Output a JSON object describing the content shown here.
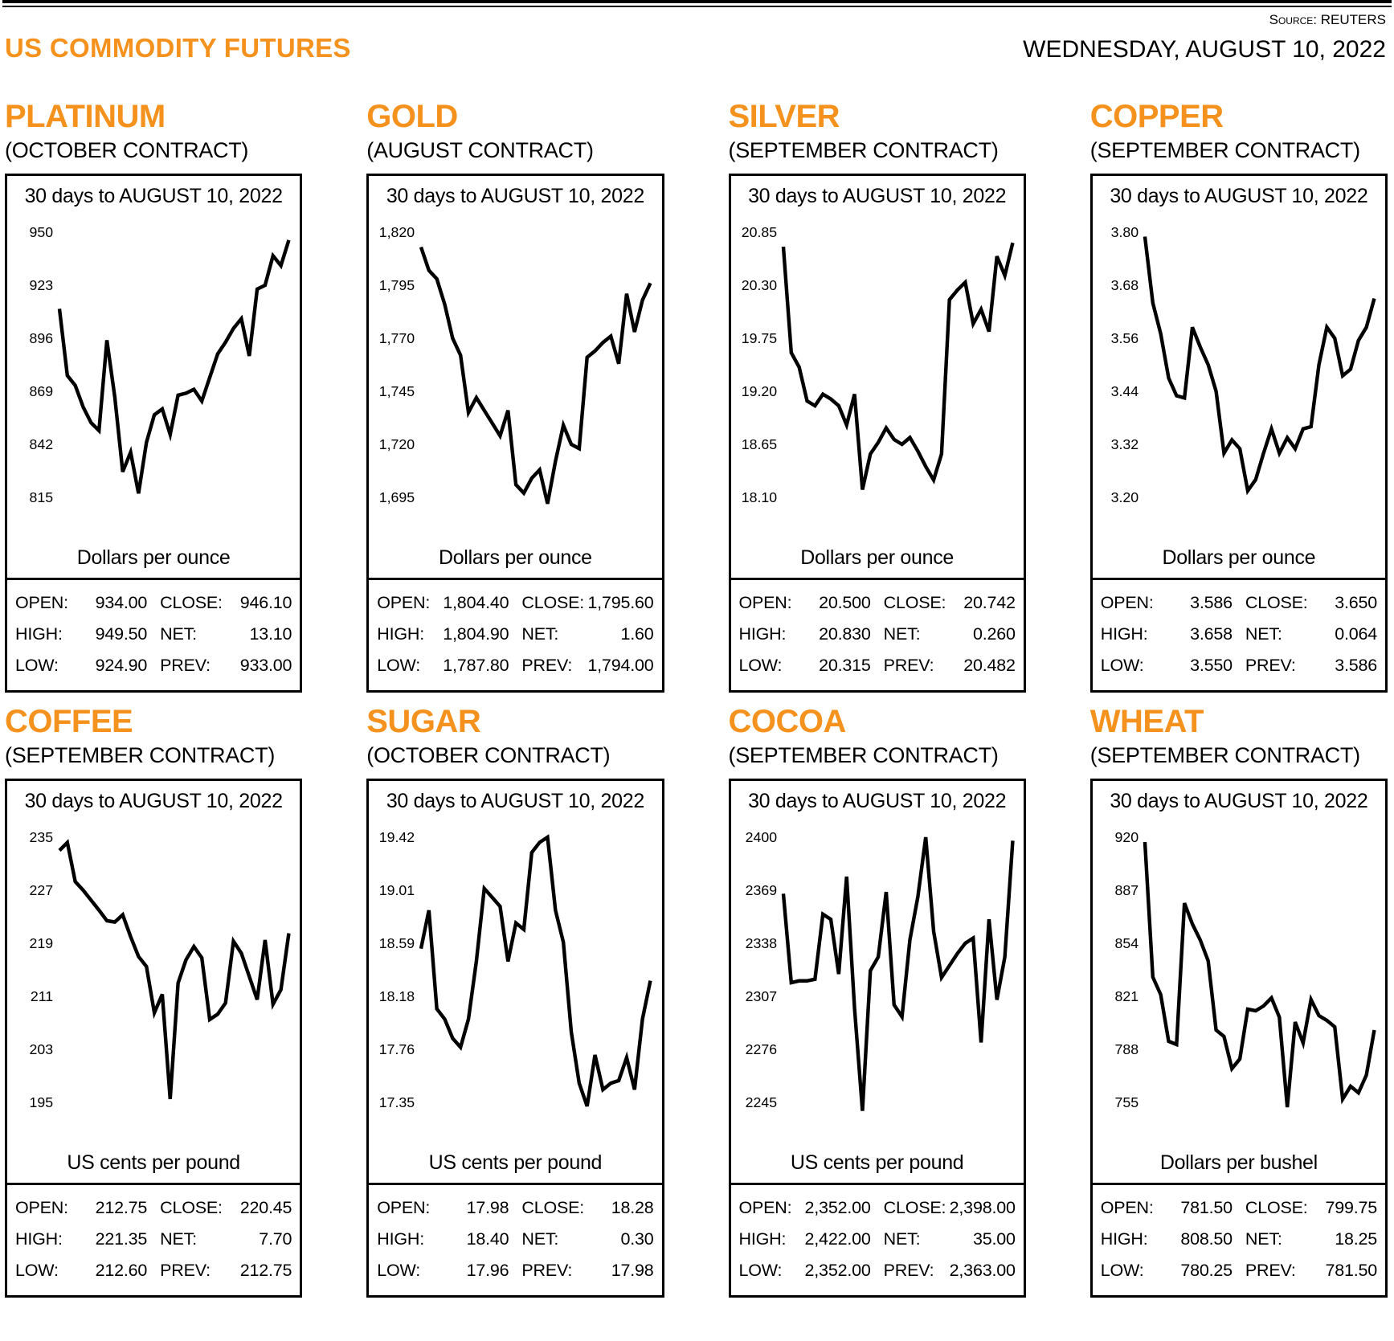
{
  "page": {
    "title": "US COMMODITY FUTURES",
    "source_label": "Source:",
    "source_value": "REUTERS",
    "date": "WEDNESDAY, AUGUST 10, 2022",
    "accent_color": "#F5921E"
  },
  "stat_labels": {
    "open": "OPEN:",
    "high": "HIGH:",
    "low": "LOW:",
    "close": "CLOSE:",
    "net": "NET:",
    "prev": "PREV:"
  },
  "panels": [
    {
      "title": "PLATINUM",
      "contract": "(OCTOBER CONTRACT)",
      "period": "30 days to AUGUST 10, 2022",
      "unit": "Dollars per ounce",
      "stats": {
        "open": "934.00",
        "high": "949.50",
        "low": "924.90",
        "close": "946.10",
        "net": "13.10",
        "prev": "933.00"
      }
    },
    {
      "title": "GOLD",
      "contract": "(AUGUST CONTRACT)",
      "period": "30 days to AUGUST 10, 2022",
      "unit": "Dollars per ounce",
      "stats": {
        "open": "1,804.40",
        "high": "1,804.90",
        "low": "1,787.80",
        "close": "1,795.60",
        "net": "1.60",
        "prev": "1,794.00"
      }
    },
    {
      "title": "SILVER",
      "contract": "(SEPTEMBER CONTRACT)",
      "period": "30 days to AUGUST 10, 2022",
      "unit": "Dollars per ounce",
      "stats": {
        "open": "20.500",
        "high": "20.830",
        "low": "20.315",
        "close": "20.742",
        "net": "0.260",
        "prev": "20.482"
      }
    },
    {
      "title": "COPPER",
      "contract": "(SEPTEMBER CONTRACT)",
      "period": "30 days to AUGUST 10, 2022",
      "unit": "Dollars per ounce",
      "stats": {
        "open": "3.586",
        "high": "3.658",
        "low": "3.550",
        "close": "3.650",
        "net": "0.064",
        "prev": "3.586"
      }
    },
    {
      "title": "COFFEE",
      "contract": "(SEPTEMBER CONTRACT)",
      "period": "30 days to AUGUST 10, 2022",
      "unit": "US cents per pound",
      "stats": {
        "open": "212.75",
        "high": "221.35",
        "low": "212.60",
        "close": "220.45",
        "net": "7.70",
        "prev": "212.75"
      }
    },
    {
      "title": "SUGAR",
      "contract": "(OCTOBER CONTRACT)",
      "period": "30 days to AUGUST 10, 2022",
      "unit": "US cents per pound",
      "stats": {
        "open": "17.98",
        "high": "18.40",
        "low": "17.96",
        "close": "18.28",
        "net": "0.30",
        "prev": "17.98"
      }
    },
    {
      "title": "COCOA",
      "contract": "(SEPTEMBER CONTRACT)",
      "period": "30 days to AUGUST 10, 2022",
      "unit": "US cents per pound",
      "stats": {
        "open": "2,352.00",
        "high": "2,422.00",
        "low": "2,352.00",
        "close": "2,398.00",
        "net": "35.00",
        "prev": "2,363.00"
      }
    },
    {
      "title": "WHEAT",
      "contract": "(SEPTEMBER CONTRACT)",
      "period": "30 days to AUGUST 10, 2022",
      "unit": "Dollars per bushel",
      "stats": {
        "open": "781.50",
        "high": "808.50",
        "low": "780.25",
        "close": "799.75",
        "net": "18.25",
        "prev": "781.50"
      }
    }
  ],
  "chart_data": [
    {
      "type": "line",
      "commodity": "PLATINUM",
      "title": "30 days to AUGUST 10, 2022",
      "ylabel": "Dollars per ounce",
      "yticks": [
        950,
        923,
        896,
        869,
        842,
        815
      ],
      "ytick_labels": [
        "950",
        "923",
        "896",
        "869",
        "842",
        "815"
      ],
      "ylim": [
        815,
        950
      ],
      "grid": false,
      "legend": "none",
      "values": [
        911,
        877,
        872,
        861,
        853,
        849,
        895,
        866,
        828,
        838,
        817,
        843,
        857,
        860,
        847,
        867,
        868,
        870,
        864,
        876,
        888,
        894,
        901,
        906,
        887,
        921,
        923,
        938,
        933,
        946
      ]
    },
    {
      "type": "line",
      "commodity": "GOLD",
      "title": "30 days to AUGUST 10, 2022",
      "ylabel": "Dollars per ounce",
      "yticks": [
        1820,
        1795,
        1770,
        1745,
        1720,
        1695
      ],
      "ytick_labels": [
        "1,820",
        "1,795",
        "1,770",
        "1,745",
        "1,720",
        "1,695"
      ],
      "ylim": [
        1695,
        1820
      ],
      "grid": false,
      "legend": "none",
      "values": [
        1813,
        1802,
        1798,
        1786,
        1770,
        1762,
        1735,
        1742,
        1736,
        1730,
        1724,
        1736,
        1701,
        1697,
        1704,
        1708,
        1692,
        1712,
        1729,
        1720,
        1718,
        1761,
        1764,
        1768,
        1771,
        1758,
        1791,
        1773,
        1788,
        1796
      ]
    },
    {
      "type": "line",
      "commodity": "SILVER",
      "title": "30 days to AUGUST 10, 2022",
      "ylabel": "Dollars per ounce",
      "yticks": [
        20.85,
        20.3,
        19.75,
        19.2,
        18.65,
        18.1
      ],
      "ytick_labels": [
        "20.85",
        "20.30",
        "19.75",
        "19.20",
        "18.65",
        "18.10"
      ],
      "ylim": [
        18.1,
        20.85
      ],
      "grid": false,
      "legend": "none",
      "values": [
        20.7,
        19.6,
        19.45,
        19.1,
        19.05,
        19.17,
        19.12,
        19.05,
        18.85,
        19.17,
        18.18,
        18.55,
        18.67,
        18.82,
        18.7,
        18.65,
        18.72,
        18.58,
        18.42,
        18.28,
        18.55,
        20.15,
        20.25,
        20.33,
        19.9,
        20.05,
        19.82,
        20.6,
        20.4,
        20.74
      ]
    },
    {
      "type": "line",
      "commodity": "COPPER",
      "title": "30 days to AUGUST 10, 2022",
      "ylabel": "Dollars per ounce",
      "yticks": [
        3.8,
        3.68,
        3.56,
        3.44,
        3.32,
        3.2
      ],
      "ytick_labels": [
        "3.80",
        "3.68",
        "3.56",
        "3.44",
        "3.32",
        "3.20"
      ],
      "ylim": [
        3.2,
        3.8
      ],
      "grid": false,
      "legend": "none",
      "values": [
        3.79,
        3.64,
        3.57,
        3.47,
        3.43,
        3.425,
        3.585,
        3.54,
        3.5,
        3.44,
        3.3,
        3.33,
        3.31,
        3.215,
        3.24,
        3.3,
        3.355,
        3.3,
        3.335,
        3.31,
        3.355,
        3.36,
        3.5,
        3.585,
        3.56,
        3.475,
        3.49,
        3.555,
        3.585,
        3.65
      ]
    },
    {
      "type": "line",
      "commodity": "COFFEE",
      "title": "30 days to AUGUST 10, 2022",
      "ylabel": "US cents per pound",
      "yticks": [
        235,
        227,
        219,
        211,
        203,
        195
      ],
      "ytick_labels": [
        "235",
        "227",
        "219",
        "211",
        "203",
        "195"
      ],
      "ylim": [
        195,
        235
      ],
      "grid": false,
      "legend": "none",
      "values": [
        233,
        234.2,
        228.3,
        227,
        225.5,
        224,
        222.4,
        222.2,
        223.3,
        220,
        217,
        215.5,
        208.5,
        211.3,
        195.5,
        213,
        216.5,
        218.5,
        216.8,
        207.5,
        208.3,
        210,
        219.3,
        217.5,
        214,
        210.5,
        219.5,
        209.8,
        212,
        220.5
      ]
    },
    {
      "type": "line",
      "commodity": "SUGAR",
      "title": "30 days to AUGUST 10, 2022",
      "ylabel": "US cents per pound",
      "yticks": [
        19.42,
        19.01,
        18.59,
        18.18,
        17.76,
        17.35
      ],
      "ytick_labels": [
        "19.42",
        "19.01",
        "18.59",
        "18.18",
        "17.76",
        "17.35"
      ],
      "ylim": [
        17.35,
        19.42
      ],
      "grid": false,
      "legend": "none",
      "values": [
        18.55,
        18.85,
        18.08,
        18.0,
        17.85,
        17.78,
        18.0,
        18.45,
        19.02,
        18.95,
        18.88,
        18.45,
        18.75,
        18.7,
        19.3,
        19.38,
        19.42,
        18.85,
        18.6,
        17.9,
        17.5,
        17.32,
        17.72,
        17.45,
        17.5,
        17.52,
        17.7,
        17.45,
        18.0,
        18.3
      ]
    },
    {
      "type": "line",
      "commodity": "COCOA",
      "title": "30 days to AUGUST 10, 2022",
      "ylabel": "US cents per pound",
      "yticks": [
        2400,
        2369,
        2338,
        2307,
        2276,
        2245
      ],
      "ytick_labels": [
        "2400",
        "2369",
        "2338",
        "2307",
        "2276",
        "2245"
      ],
      "ylim": [
        2245,
        2400
      ],
      "grid": false,
      "legend": "none",
      "values": [
        2367,
        2315,
        2316,
        2316,
        2317,
        2355,
        2352,
        2320,
        2377,
        2300,
        2240,
        2322,
        2330,
        2368,
        2302,
        2295,
        2340,
        2365,
        2400,
        2345,
        2318,
        2325,
        2332,
        2338,
        2341,
        2280,
        2352,
        2305,
        2330,
        2398
      ]
    },
    {
      "type": "line",
      "commodity": "WHEAT",
      "title": "30 days to AUGUST 10, 2022",
      "ylabel": "Dollars per bushel",
      "yticks": [
        920,
        887,
        854,
        821,
        788,
        755
      ],
      "ytick_labels": [
        "920",
        "887",
        "854",
        "821",
        "788",
        "755"
      ],
      "ylim": [
        755,
        920
      ],
      "grid": false,
      "legend": "none",
      "values": [
        917,
        833,
        822,
        793,
        791,
        879,
        866,
        856,
        843,
        800,
        796,
        776,
        782,
        813,
        812,
        815,
        820,
        808,
        752,
        805,
        792,
        819,
        809,
        806,
        802,
        757,
        765,
        761,
        772,
        800
      ]
    }
  ]
}
